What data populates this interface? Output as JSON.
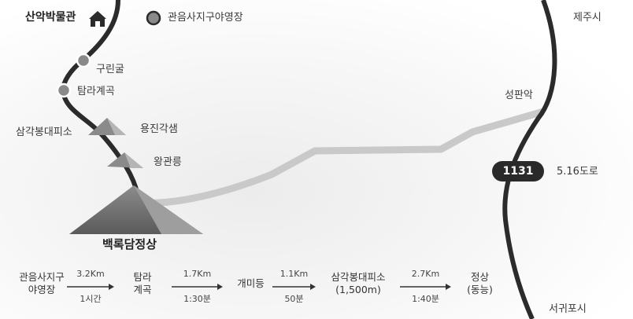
{
  "labels": {
    "museum": "산악박물관",
    "campground": "관음사지구야영장",
    "cave": "구린굴",
    "valley": "탐라계곡",
    "shelter": "삼각봉대피소",
    "spring": "용진각샘",
    "crown": "왕관릉",
    "summit": "백록담정상",
    "seongpanak": "성판악",
    "jeju": "제주시",
    "seogwipo": "서귀포시",
    "road_number": "1131",
    "road_name": "5.16도로"
  },
  "route": {
    "stops": [
      "관음사지구\n야영장",
      "탐라\n계곡",
      "개미등",
      "삼각봉대피소\n(1,500m)",
      "정상\n(동능)"
    ],
    "segments": [
      {
        "distance": "3.2Km",
        "time": "1시간"
      },
      {
        "distance": "1.7Km",
        "time": "1:30분"
      },
      {
        "distance": "1.1Km",
        "time": "50분"
      },
      {
        "distance": "2.7Km",
        "time": "1:40분"
      }
    ]
  },
  "colors": {
    "trail": "#2b2b2b",
    "road_secondary": "#c9c9c9",
    "mountain": "#7a7a7a",
    "marker_ring": "#8a8a8a"
  }
}
